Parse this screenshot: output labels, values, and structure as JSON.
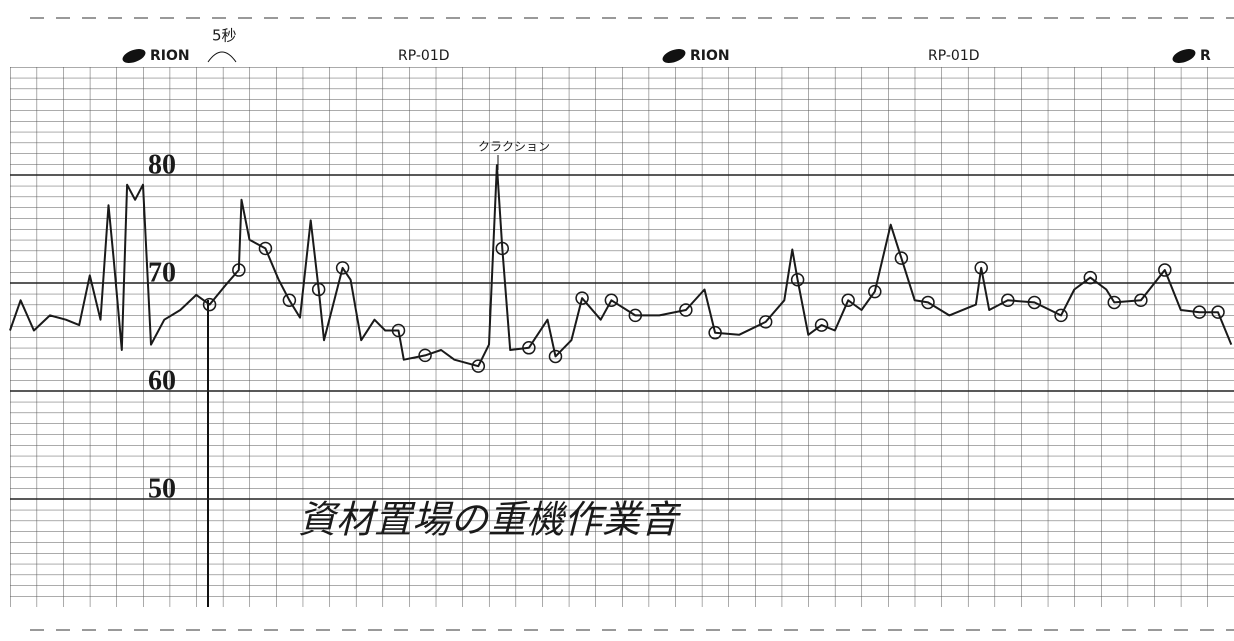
{
  "chart_data": {
    "type": "line",
    "brand_labels": [
      "RION",
      "RP-01D",
      "RION",
      "RP-01D",
      "R"
    ],
    "event_label": "5秒",
    "spike_label": "クラクション",
    "caption": "資材置場の重機作業音",
    "xlim": [
      0,
      46
    ],
    "ylim": [
      40,
      90
    ],
    "yticks": [
      50,
      60,
      70,
      80
    ],
    "grid": true,
    "series": [
      {
        "color": "#1a1a1a",
        "marker": "none",
        "x": [
          0.0,
          0.4,
          0.9,
          1.5,
          2.1,
          2.6,
          3.0,
          3.4,
          3.7,
          3.9,
          4.2,
          4.4,
          4.7,
          5.0,
          5.3,
          5.8,
          6.4,
          7.0,
          7.5,
          8.1,
          8.6,
          8.7,
          9.0,
          9.6,
          10.1,
          10.5,
          10.9,
          11.3,
          11.6,
          11.8,
          12.5,
          12.8,
          13.2,
          13.7,
          14.1,
          14.6,
          14.8,
          15.6,
          16.2,
          16.7,
          17.6,
          18.0,
          18.3,
          18.5,
          18.8,
          19.5,
          20.2,
          20.5,
          21.1,
          21.5,
          22.2,
          22.6,
          23.5,
          24.4,
          25.4,
          26.1,
          26.5,
          27.4,
          28.4,
          29.1,
          29.4,
          29.6,
          30.0,
          30.5,
          31.0,
          31.5,
          32.0,
          32.5,
          33.1,
          33.5,
          34.0,
          34.5,
          35.3,
          36.3,
          36.5,
          36.8,
          37.5,
          38.5,
          39.5,
          40.0,
          40.6,
          41.2,
          41.5,
          42.5,
          43.4,
          44.0,
          44.7,
          45.4,
          45.9
        ],
        "values": [
          65.6,
          68.4,
          65.6,
          67.0,
          66.6,
          66.1,
          70.7,
          66.6,
          77.2,
          72.1,
          63.8,
          79.1,
          77.7,
          79.1,
          64.3,
          66.6,
          67.5,
          68.9,
          68.0,
          69.8,
          71.2,
          77.7,
          74.0,
          73.2,
          70.3,
          68.4,
          66.8,
          75.8,
          69.4,
          64.7,
          71.4,
          70.3,
          64.7,
          66.6,
          65.6,
          65.6,
          62.9,
          63.3,
          63.8,
          62.9,
          62.3,
          64.3,
          80.9,
          73.2,
          63.8,
          64.0,
          66.6,
          63.2,
          64.7,
          68.6,
          66.6,
          68.4,
          67.0,
          67.0,
          67.5,
          69.4,
          65.4,
          65.2,
          66.4,
          68.4,
          73.1,
          70.3,
          65.2,
          66.1,
          65.6,
          68.4,
          67.5,
          69.2,
          75.4,
          72.3,
          68.4,
          68.2,
          67.0,
          68.0,
          71.4,
          67.5,
          68.4,
          68.2,
          67.0,
          69.4,
          70.5,
          69.4,
          68.2,
          68.4,
          71.2,
          67.5,
          67.3,
          67.3,
          64.3
        ]
      },
      {
        "color": "#1a1a1a",
        "marker": "circle",
        "x": [
          7.5,
          8.6,
          9.6,
          10.5,
          11.6,
          12.5,
          14.6,
          15.6,
          17.6,
          18.5,
          19.5,
          20.5,
          21.5,
          22.6,
          23.5,
          25.4,
          26.5,
          28.4,
          29.6,
          30.5,
          31.5,
          32.5,
          33.5,
          34.5,
          36.5,
          37.5,
          38.5,
          39.5,
          40.6,
          41.5,
          42.5,
          43.4,
          44.7,
          45.4
        ],
        "values": [
          68.0,
          71.2,
          73.2,
          68.4,
          69.4,
          71.4,
          65.6,
          63.3,
          62.3,
          73.2,
          64.0,
          63.2,
          68.6,
          68.4,
          67.0,
          67.5,
          65.4,
          66.4,
          70.3,
          66.1,
          68.4,
          69.2,
          72.3,
          68.2,
          71.4,
          68.4,
          68.2,
          67.0,
          70.5,
          68.2,
          68.4,
          71.2,
          67.3,
          67.3
        ]
      }
    ]
  }
}
